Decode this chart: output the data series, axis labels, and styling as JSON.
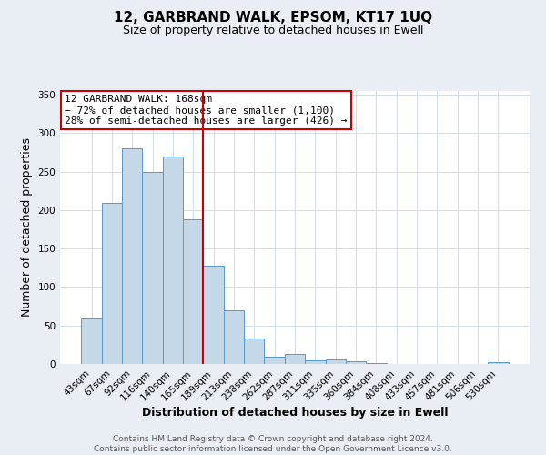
{
  "title": "12, GARBRAND WALK, EPSOM, KT17 1UQ",
  "subtitle": "Size of property relative to detached houses in Ewell",
  "xlabel": "Distribution of detached houses by size in Ewell",
  "ylabel": "Number of detached properties",
  "footer_line1": "Contains HM Land Registry data © Crown copyright and database right 2024.",
  "footer_line2": "Contains public sector information licensed under the Open Government Licence v3.0.",
  "annotation_line1": "12 GARBRAND WALK: 168sqm",
  "annotation_line2": "← 72% of detached houses are smaller (1,100)",
  "annotation_line3": "28% of semi-detached houses are larger (426) →",
  "bar_labels": [
    "43sqm",
    "67sqm",
    "92sqm",
    "116sqm",
    "140sqm",
    "165sqm",
    "189sqm",
    "213sqm",
    "238sqm",
    "262sqm",
    "287sqm",
    "311sqm",
    "335sqm",
    "360sqm",
    "384sqm",
    "408sqm",
    "433sqm",
    "457sqm",
    "481sqm",
    "506sqm",
    "530sqm"
  ],
  "bar_values": [
    60,
    210,
    280,
    250,
    270,
    188,
    128,
    70,
    33,
    10,
    13,
    5,
    6,
    3,
    1,
    0,
    0,
    0,
    0,
    0,
    2
  ],
  "bar_color": "#c5d8e8",
  "bar_edge_color": "#5599cc",
  "vline_x": 5.5,
  "vline_color": "#cc0000",
  "annotation_box_color": "#cc0000",
  "ylim": [
    0,
    355
  ],
  "yticks": [
    0,
    50,
    100,
    150,
    200,
    250,
    300,
    350
  ],
  "grid_color": "#d0dde8",
  "background_color": "#e8eef4",
  "plot_bg_color": "#ffffff",
  "title_fontsize": 11,
  "subtitle_fontsize": 9,
  "xlabel_fontsize": 9,
  "ylabel_fontsize": 9,
  "tick_fontsize": 7.5,
  "annotation_fontsize": 8,
  "footer_fontsize": 6.5
}
